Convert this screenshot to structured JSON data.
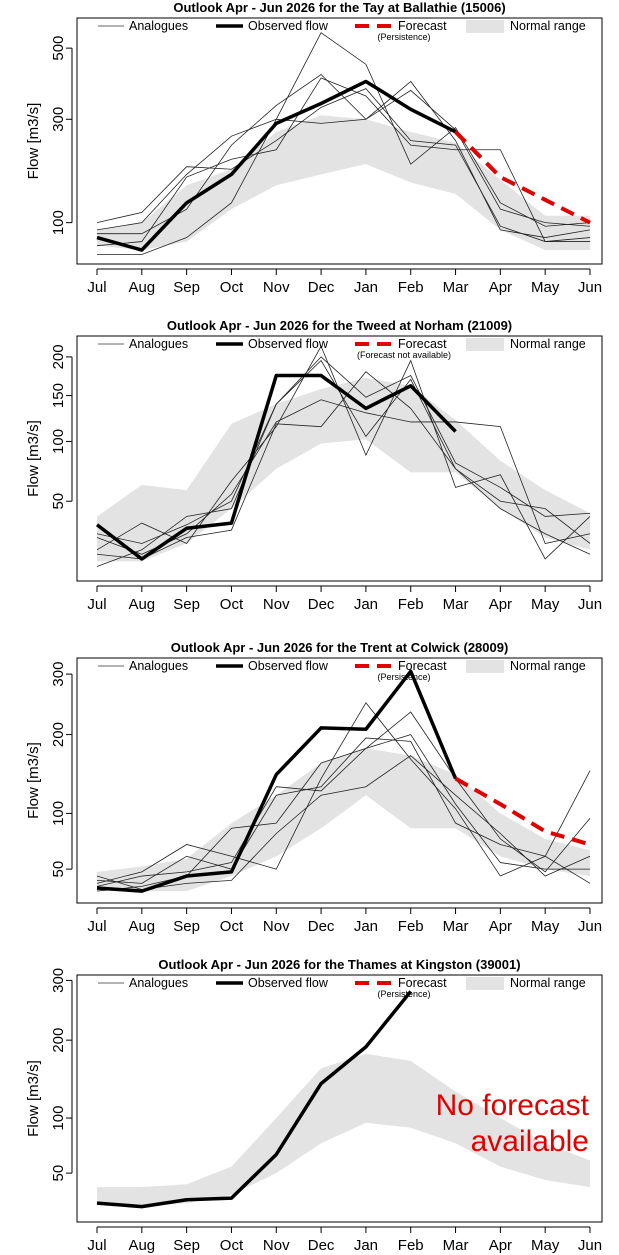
{
  "chart_data": [
    {
      "type": "line",
      "title": "Outlook Apr - Jun 2026 for the Tay at Ballathie (15006)",
      "ylabel": "Flow [m3/s]",
      "scale": "sqrt",
      "ylim": [
        50,
        600
      ],
      "yticks": [
        100,
        300,
        500
      ],
      "categories": [
        "Jul",
        "Aug",
        "Sep",
        "Oct",
        "Nov",
        "Dec",
        "Jan",
        "Feb",
        "Mar",
        "Apr",
        "May",
        "Jun"
      ],
      "legend": {
        "analogues": "Analogues",
        "observed": "Observed flow",
        "forecast": "Forecast",
        "forecast_note": "(Persistence)",
        "normal": "Normal range"
      },
      "normal_range": {
        "lower": [
          70,
          65,
          75,
          120,
          160,
          180,
          200,
          165,
          145,
          90,
          65,
          65
        ],
        "upper": [
          90,
          100,
          160,
          190,
          270,
          310,
          300,
          270,
          245,
          170,
          110,
          110
        ]
      },
      "observed": [
        80,
        65,
        130,
        180,
        290,
        340,
        400,
        325,
        270,
        null,
        null,
        null
      ],
      "forecast": [
        null,
        null,
        null,
        null,
        null,
        null,
        null,
        null,
        270,
        175,
        135,
        100
      ],
      "analogues": [
        [
          100,
          115,
          195,
          190,
          250,
          330,
          380,
          250,
          240,
          95,
          75,
          80
        ],
        [
          60,
          60,
          80,
          130,
          300,
          550,
          450,
          200,
          280,
          130,
          95,
          100
        ],
        [
          90,
          100,
          180,
          260,
          300,
          290,
          300,
          400,
          250,
          90,
          80,
          90
        ],
        [
          70,
          75,
          175,
          210,
          230,
          410,
          360,
          240,
          230,
          230,
          75,
          75
        ],
        [
          85,
          85,
          120,
          240,
          335,
          420,
          300,
          375,
          275,
          120,
          100,
          95
        ]
      ],
      "message": ""
    },
    {
      "type": "line",
      "title": "Outlook Apr - Jun 2026 for the Tweed at Norham (21009)",
      "ylabel": "Flow [m3/s]",
      "scale": "sqrt",
      "ylim": [
        10,
        230
      ],
      "yticks": [
        50,
        100,
        150,
        200
      ],
      "categories": [
        "Jul",
        "Aug",
        "Sep",
        "Oct",
        "Nov",
        "Dec",
        "Jan",
        "Feb",
        "Mar",
        "Apr",
        "May",
        "Jun"
      ],
      "legend": {
        "analogues": "Analogues",
        "observed": "Observed flow",
        "forecast": "Forecast",
        "forecast_note": "(Forecast not available)",
        "normal": "Normal range"
      },
      "normal_range": {
        "lower": [
          17,
          17,
          25,
          45,
          75,
          98,
          102,
          72,
          72,
          45,
          28,
          22
        ],
        "upper": [
          40,
          62,
          58,
          118,
          140,
          158,
          172,
          162,
          122,
          82,
          58,
          42
        ]
      },
      "observed": [
        35,
        18,
        33,
        36,
        175,
        175,
        135,
        162,
        110,
        null,
        null,
        null
      ],
      "forecast": [
        null,
        null,
        null,
        null,
        null,
        null,
        null,
        null,
        null,
        null,
        null,
        null
      ],
      "analogues": [
        [
          22,
          36,
          25,
          65,
          115,
          215,
          87,
          195,
          60,
          70,
          18,
          40
        ],
        [
          15,
          22,
          40,
          45,
          140,
          195,
          105,
          170,
          75,
          50,
          45,
          25
        ],
        [
          28,
          20,
          30,
          55,
          120,
          145,
          130,
          120,
          120,
          115,
          25,
          30
        ],
        [
          30,
          25,
          35,
          50,
          140,
          200,
          148,
          175,
          80,
          60,
          40,
          42
        ],
        [
          20,
          18,
          28,
          32,
          118,
          115,
          180,
          135,
          75,
          45,
          30,
          20
        ]
      ],
      "message": ""
    },
    {
      "type": "line",
      "title": "Outlook Apr - Jun 2026 for the Trent at Colwick (28009)",
      "ylabel": "Flow [m3/s]",
      "scale": "sqrt",
      "ylim": [
        28,
        330
      ],
      "yticks": [
        50,
        100,
        200,
        300
      ],
      "categories": [
        "Jul",
        "Aug",
        "Sep",
        "Oct",
        "Nov",
        "Dec",
        "Jan",
        "Feb",
        "Mar",
        "Apr",
        "May",
        "Jun"
      ],
      "legend": {
        "analogues": "Analogues",
        "observed": "Observed flow",
        "forecast": "Forecast",
        "forecast_note": "(Persistence)",
        "normal": "Normal range"
      },
      "normal_range": {
        "lower": [
          35,
          35,
          35,
          45,
          60,
          85,
          120,
          85,
          85,
          60,
          50,
          45
        ],
        "upper": [
          48,
          52,
          58,
          90,
          120,
          160,
          180,
          170,
          145,
          100,
          75,
          65
        ]
      },
      "observed": [
        37,
        35,
        45,
        48,
        145,
        210,
        208,
        305,
        140,
        null,
        null,
        null
      ],
      "forecast": [
        null,
        null,
        null,
        null,
        null,
        null,
        null,
        null,
        140,
        110,
        82,
        70
      ],
      "analogues": [
        [
          40,
          48,
          70,
          60,
          50,
          140,
          250,
          165,
          105,
          45,
          60,
          150
        ],
        [
          35,
          38,
          45,
          85,
          90,
          160,
          180,
          235,
          140,
          75,
          48,
          95
        ],
        [
          42,
          40,
          60,
          50,
          120,
          130,
          195,
          190,
          90,
          70,
          60,
          40
        ],
        [
          38,
          45,
          48,
          55,
          130,
          125,
          180,
          200,
          110,
          55,
          50,
          50
        ],
        [
          45,
          36,
          40,
          42,
          80,
          120,
          130,
          170,
          120,
          80,
          45,
          60
        ]
      ],
      "message": ""
    },
    {
      "type": "line",
      "title": "Outlook Apr - Jun 2026 for the Thames at Kingston (39001)",
      "ylabel": "Flow [m3/s]",
      "scale": "sqrt",
      "ylim": [
        20,
        310
      ],
      "yticks": [
        50,
        100,
        200,
        300
      ],
      "categories": [
        "Jul",
        "Aug",
        "Sep",
        "Oct",
        "Nov",
        "Dec",
        "Jan",
        "Feb",
        "Mar",
        "Apr",
        "May",
        "Jun"
      ],
      "legend": {
        "analogues": "Analogues",
        "observed": "Observed flow",
        "forecast": "Forecast",
        "forecast_note": "(Persistence)",
        "normal": "Normal range"
      },
      "normal_range": {
        "lower": [
          30,
          28,
          30,
          35,
          50,
          75,
          95,
          90,
          75,
          55,
          45,
          40
        ],
        "upper": [
          40,
          40,
          42,
          55,
          100,
          160,
          180,
          170,
          130,
          100,
          75,
          60
        ]
      },
      "observed": [
        30,
        28,
        32,
        33,
        65,
        140,
        190,
        280,
        null,
        null,
        null,
        null
      ],
      "forecast": [
        null,
        null,
        null,
        null,
        null,
        null,
        null,
        null,
        null,
        null,
        null,
        null
      ],
      "analogues": [],
      "message": "No forecast available",
      "message_lines": [
        "No forecast",
        "available"
      ],
      "message_color": "#e00000"
    }
  ]
}
